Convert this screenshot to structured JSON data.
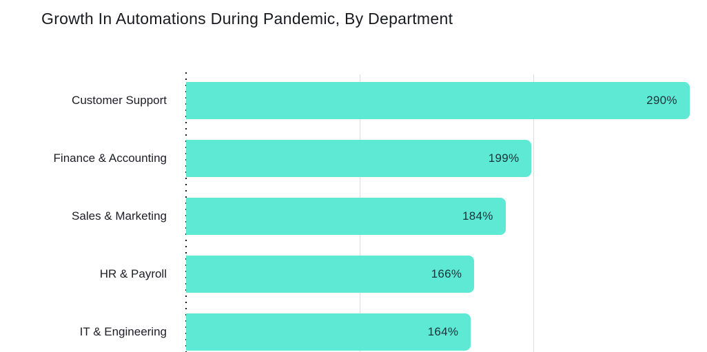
{
  "title": "Growth In Automations During Pandemic, By Department",
  "chart_data": {
    "type": "bar",
    "orientation": "horizontal",
    "title": "Growth In Automations During Pandemic, By Department",
    "categories": [
      "Customer Support",
      "Finance & Accounting",
      "Sales & Marketing",
      "HR & Payroll",
      "IT & Engineering"
    ],
    "values": [
      290,
      199,
      184,
      166,
      164
    ],
    "value_labels": [
      "290%",
      "199%",
      "184%",
      "166%",
      "164%"
    ],
    "xlabel": "",
    "ylabel": "",
    "xlim": [
      0,
      300
    ],
    "gridline_values": [
      100,
      200
    ],
    "grid": "vertical-light",
    "legend": "none",
    "axis_style": "dotted-vertical-baseline",
    "colors": {
      "bar_fill": "#5ee9d4",
      "value_text": "#17323a",
      "category_text": "#1d1d26",
      "title_text": "#191a20",
      "gridline": "#dcdcdc",
      "axis_dots": "#1c1c1c",
      "background": "#ffffff"
    }
  }
}
